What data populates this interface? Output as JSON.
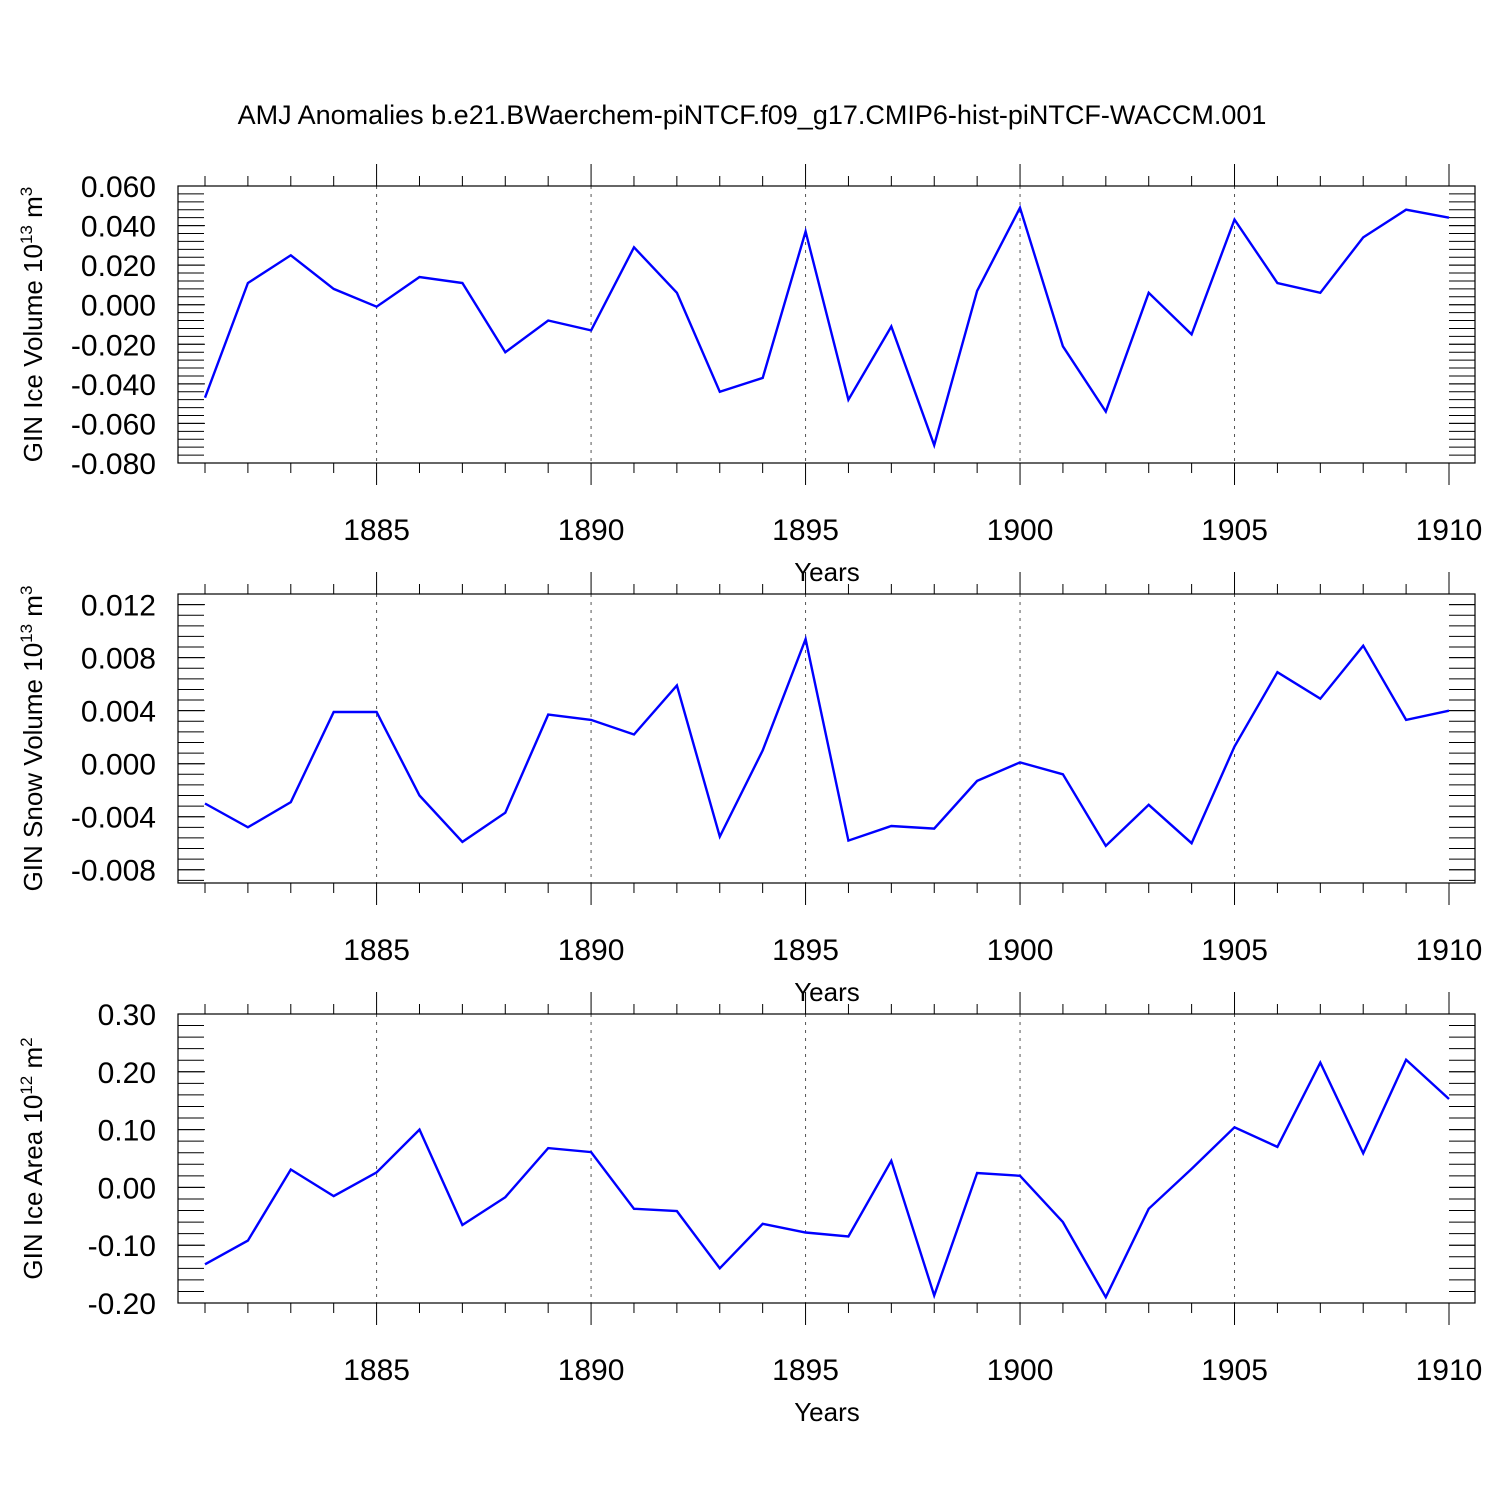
{
  "title": "AMJ Anomalies b.e21.BWaerchem-piNTCF.f09_g17.CMIP6-hist-piNTCF-WACCM.001",
  "line_color": "#0000ff",
  "chart_data": [
    {
      "type": "line",
      "ylabel_main": "GIN Ice Volume 10",
      "ylabel_sup1": "13",
      "ylabel_unit": " m",
      "ylabel_sup2": "3",
      "xlabel": "Years",
      "xlim": [
        1881,
        1910
      ],
      "ylim": [
        -0.08,
        0.06
      ],
      "yticks": [
        -0.08,
        -0.06,
        -0.04,
        -0.02,
        0.0,
        0.02,
        0.04,
        0.06
      ],
      "ytick_labels": [
        "-0.080",
        "-0.060",
        "-0.040",
        "-0.020",
        "0.000",
        "0.020",
        "0.040",
        "0.060"
      ],
      "y_minor_step": 0.004,
      "xticks": [
        1885,
        1890,
        1895,
        1900,
        1905,
        1910
      ],
      "xtick_labels": [
        "1885",
        "1890",
        "1895",
        "1900",
        "1905",
        "1910"
      ],
      "x": [
        1881,
        1882,
        1883,
        1884,
        1885,
        1886,
        1887,
        1888,
        1889,
        1890,
        1891,
        1892,
        1893,
        1894,
        1895,
        1896,
        1897,
        1898,
        1899,
        1900,
        1901,
        1902,
        1903,
        1904,
        1905,
        1906,
        1907,
        1908,
        1909,
        1910
      ],
      "values": [
        -0.047,
        0.011,
        0.025,
        0.008,
        -0.001,
        0.014,
        0.011,
        -0.024,
        -0.008,
        -0.013,
        0.029,
        0.006,
        -0.044,
        -0.037,
        0.037,
        -0.048,
        -0.011,
        -0.071,
        0.007,
        0.049,
        -0.021,
        -0.054,
        0.006,
        -0.015,
        0.043,
        0.011,
        0.006,
        0.034,
        0.048,
        0.044
      ]
    },
    {
      "type": "line",
      "ylabel_main": "GIN Snow Volume 10",
      "ylabel_sup1": "13",
      "ylabel_unit": " m",
      "ylabel_sup2": "3",
      "xlabel": "Years",
      "xlim": [
        1881,
        1910
      ],
      "ylim": [
        -0.009,
        0.0128
      ],
      "yticks": [
        -0.008,
        -0.004,
        0.0,
        0.004,
        0.008,
        0.012
      ],
      "ytick_labels": [
        "-0.008",
        "-0.004",
        "0.000",
        "0.004",
        "0.008",
        "0.012"
      ],
      "y_minor_step": 0.0008,
      "xticks": [
        1885,
        1890,
        1895,
        1900,
        1905,
        1910
      ],
      "xtick_labels": [
        "1885",
        "1890",
        "1895",
        "1900",
        "1905",
        "1910"
      ],
      "x": [
        1881,
        1882,
        1883,
        1884,
        1885,
        1886,
        1887,
        1888,
        1889,
        1890,
        1891,
        1892,
        1893,
        1894,
        1895,
        1896,
        1897,
        1898,
        1899,
        1900,
        1901,
        1902,
        1903,
        1904,
        1905,
        1906,
        1907,
        1908,
        1909,
        1910
      ],
      "values": [
        -0.003,
        -0.0048,
        -0.0029,
        0.0039,
        0.0039,
        -0.0024,
        -0.0059,
        -0.0037,
        0.0037,
        0.0033,
        0.0022,
        0.0059,
        -0.0055,
        0.001,
        0.0094,
        -0.0058,
        -0.0047,
        -0.0049,
        -0.0013,
        0.0001,
        -0.0008,
        -0.0062,
        -0.0031,
        -0.006,
        0.0013,
        0.0069,
        0.0049,
        0.0089,
        0.0033,
        0.004
      ]
    },
    {
      "type": "line",
      "ylabel_main": "GIN Ice Area 10",
      "ylabel_sup1": "12",
      "ylabel_unit": " m",
      "ylabel_sup2": "2",
      "xlabel": "Years",
      "xlim": [
        1881,
        1910
      ],
      "ylim": [
        -0.2,
        0.3
      ],
      "yticks": [
        -0.2,
        -0.1,
        0.0,
        0.1,
        0.2,
        0.3
      ],
      "ytick_labels": [
        "-0.20",
        "-0.10",
        "0.00",
        "0.10",
        "0.20",
        "0.30"
      ],
      "y_minor_step": 0.02,
      "xticks": [
        1885,
        1890,
        1895,
        1900,
        1905,
        1910
      ],
      "xtick_labels": [
        "1885",
        "1890",
        "1895",
        "1900",
        "1905",
        "1910"
      ],
      "x": [
        1881,
        1882,
        1883,
        1884,
        1885,
        1886,
        1887,
        1888,
        1889,
        1890,
        1891,
        1892,
        1893,
        1894,
        1895,
        1896,
        1897,
        1898,
        1899,
        1900,
        1901,
        1902,
        1903,
        1904,
        1905,
        1906,
        1907,
        1908,
        1909,
        1910
      ],
      "values": [
        -0.133,
        -0.092,
        0.031,
        -0.015,
        0.026,
        0.1,
        -0.065,
        -0.017,
        0.068,
        0.061,
        -0.037,
        -0.041,
        -0.14,
        -0.063,
        -0.078,
        -0.085,
        0.046,
        -0.187,
        0.025,
        0.02,
        -0.06,
        -0.19,
        -0.037,
        0.032,
        0.104,
        0.07,
        0.216,
        0.059,
        0.221,
        0.153
      ]
    }
  ]
}
